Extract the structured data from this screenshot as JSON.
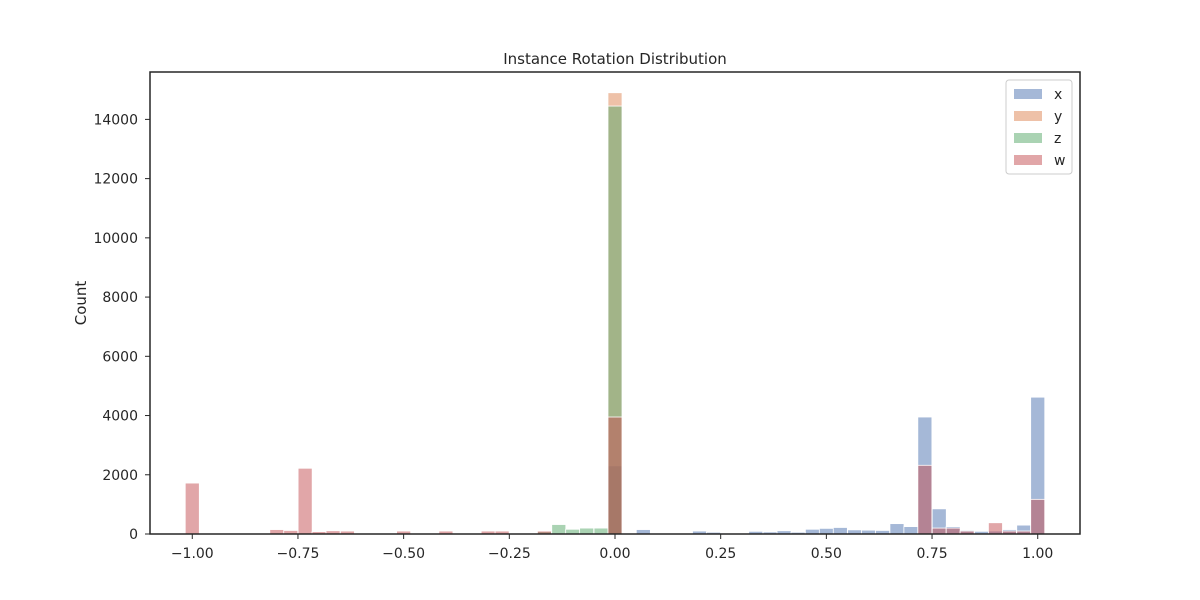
{
  "chart_data": {
    "type": "bar",
    "title": "Instance Rotation Distribution",
    "xlabel": "",
    "ylabel": "Count",
    "xlim": [
      -1.1,
      1.1
    ],
    "ylim": [
      0,
      15600
    ],
    "bin_width": 0.0333,
    "x_ticks": [
      -1.0,
      -0.75,
      -0.5,
      -0.25,
      0.0,
      0.25,
      0.5,
      0.75,
      1.0
    ],
    "x_tick_labels": [
      "−1.00",
      "−0.75",
      "−0.50",
      "−0.25",
      "0.00",
      "0.25",
      "0.50",
      "0.75",
      "1.00"
    ],
    "y_ticks": [
      0,
      2000,
      4000,
      6000,
      8000,
      10000,
      12000,
      14000
    ],
    "y_tick_labels": [
      "0",
      "2000",
      "4000",
      "6000",
      "8000",
      "10000",
      "12000",
      "14000"
    ],
    "grid": false,
    "legend_position": "top-right",
    "series": [
      {
        "name": "x",
        "color": "#4c72b0",
        "bins": [
          [
            0.0,
            2300
          ],
          [
            0.067,
            150
          ],
          [
            0.2,
            100
          ],
          [
            0.233,
            60
          ],
          [
            0.333,
            90
          ],
          [
            0.367,
            70
          ],
          [
            0.4,
            110
          ],
          [
            0.433,
            60
          ],
          [
            0.467,
            160
          ],
          [
            0.5,
            190
          ],
          [
            0.533,
            220
          ],
          [
            0.567,
            140
          ],
          [
            0.6,
            130
          ],
          [
            0.633,
            120
          ],
          [
            0.667,
            350
          ],
          [
            0.7,
            250
          ],
          [
            0.733,
            3950
          ],
          [
            0.767,
            850
          ],
          [
            0.8,
            250
          ],
          [
            0.833,
            130
          ],
          [
            0.867,
            90
          ],
          [
            0.9,
            100
          ],
          [
            0.933,
            150
          ],
          [
            0.967,
            300
          ],
          [
            1.0,
            4620
          ]
        ]
      },
      {
        "name": "y",
        "color": "#dd8452",
        "bins": [
          [
            0.0,
            14900
          ]
        ]
      },
      {
        "name": "z",
        "color": "#55a868",
        "bins": [
          [
            -0.167,
            80
          ],
          [
            -0.133,
            320
          ],
          [
            -0.1,
            160
          ],
          [
            -0.067,
            200
          ],
          [
            -0.033,
            200
          ],
          [
            0.0,
            14450
          ]
        ]
      },
      {
        "name": "w",
        "color": "#c44e52",
        "bins": [
          [
            -1.0,
            1720
          ],
          [
            -0.8,
            150
          ],
          [
            -0.767,
            120
          ],
          [
            -0.733,
            2220
          ],
          [
            -0.7,
            80
          ],
          [
            -0.667,
            110
          ],
          [
            -0.633,
            100
          ],
          [
            -0.5,
            100
          ],
          [
            -0.4,
            100
          ],
          [
            -0.3,
            100
          ],
          [
            -0.267,
            100
          ],
          [
            -0.167,
            100
          ],
          [
            0.0,
            3950
          ],
          [
            0.733,
            2320
          ],
          [
            0.767,
            200
          ],
          [
            0.8,
            200
          ],
          [
            0.833,
            100
          ],
          [
            0.9,
            380
          ],
          [
            0.933,
            100
          ],
          [
            0.967,
            100
          ],
          [
            1.0,
            1170
          ]
        ]
      }
    ]
  }
}
